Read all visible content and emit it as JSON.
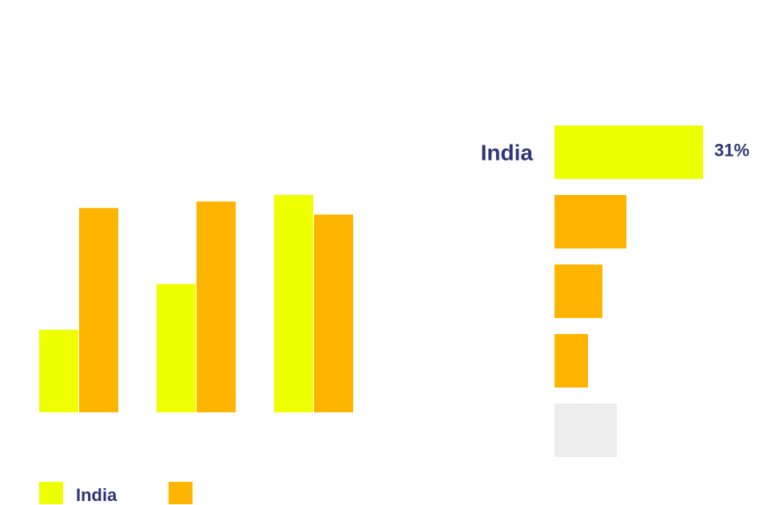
{
  "colors": {
    "india": "#EEFF00",
    "other": "#FFB400",
    "neutral": "#EDEDED",
    "text": "#2E3677"
  },
  "chart_data": [
    {
      "type": "bar",
      "categories": [
        "",
        "",
        ""
      ],
      "series": [
        {
          "name": "India",
          "color_key": "india",
          "values": [
            38,
            59,
            100
          ]
        },
        {
          "name": "",
          "color_key": "other",
          "values": [
            94,
            97,
            91
          ]
        }
      ],
      "ylim": [
        0,
        100
      ],
      "grid": false,
      "legend": "bottom-left"
    },
    {
      "type": "bar",
      "orientation": "horizontal",
      "categories": [
        "India",
        "",
        "",
        "",
        ""
      ],
      "values": [
        31,
        15,
        10,
        7,
        13
      ],
      "value_labels": [
        "31%",
        "",
        "",
        "",
        ""
      ],
      "color_keys": [
        "india",
        "other",
        "other",
        "other",
        "neutral"
      ],
      "grid": false
    }
  ]
}
